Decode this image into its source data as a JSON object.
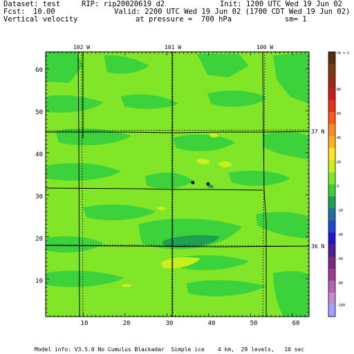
{
  "header": {
    "dataset_label": "Dataset: test",
    "rip_label": "RIP: rip20020619 d2",
    "init_label": "Init: 1200 UTC Wed 19 Jun 02",
    "fcst_label": "Fcst:",
    "fcst_value": "10.00",
    "valid_label": "Valid: 2200 UTC Wed 19 Jun 02 (1700 CDT Wed 19 Jun 02)",
    "field_name": "Vertical velocity",
    "pressure_label": "at pressure =  700 hPa",
    "smoothing_label": "sm= 1"
  },
  "map": {
    "longitude_labels": [
      "102 W",
      "101 W",
      "100 W"
    ],
    "latitude_labels": [
      "37 N",
      "36 N"
    ],
    "x_ticks": [
      "10",
      "20",
      "30",
      "40",
      "50",
      "60"
    ],
    "y_ticks": [
      "10",
      "20",
      "30",
      "40",
      "50",
      "60"
    ],
    "x_range": [
      1,
      64
    ],
    "y_range": [
      1,
      64
    ]
  },
  "colorbar": {
    "units": "cm s-1",
    "labels": [
      "80",
      "60",
      "40",
      "20",
      "0",
      "-20",
      "-40",
      "-60",
      "-80",
      "-100"
    ],
    "colors": [
      "#5a2d0c",
      "#7a3a10",
      "#9c2a10",
      "#c81e1e",
      "#e83218",
      "#ff5a1e",
      "#ff8c1e",
      "#ffb41e",
      "#ffe61e",
      "#c8f01e",
      "#82e628",
      "#3cd23c",
      "#1ea050",
      "#1e6ea0",
      "#1e46d2",
      "#2814c8",
      "#501e96",
      "#7a2880",
      "#9c3c96",
      "#b464b4",
      "#c88cd2",
      "#a0a0ff"
    ]
  },
  "footer": {
    "model_info": "Model info: V3.5.0 No Cumulus Blackadar  Simple ice    4 km,  29 levels,   10 sec"
  }
}
